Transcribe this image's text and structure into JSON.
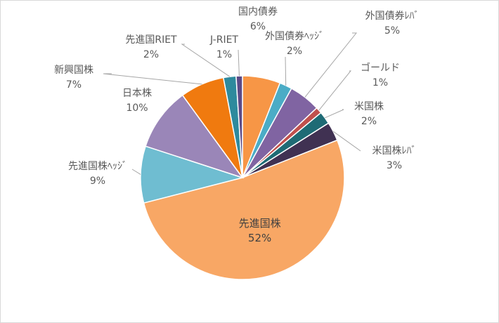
{
  "chart_data": {
    "type": "pie",
    "slices": [
      {
        "name": "国内債券",
        "value": 6,
        "label": "6%",
        "color": "#f79646"
      },
      {
        "name": "外国債券ﾍｯｼﾞ",
        "value": 2,
        "label": "2%",
        "color": "#4bacc6"
      },
      {
        "name": "外国債券ﾚﾊﾞ",
        "value": 5,
        "label": "5%",
        "color": "#8064a2"
      },
      {
        "name": "ゴールド",
        "value": 1,
        "label": "1%",
        "color": "#c0504d"
      },
      {
        "name": "米国株",
        "value": 2,
        "label": "2%",
        "color": "#1f6b75"
      },
      {
        "name": "米国株ﾚﾊﾞ",
        "value": 3,
        "label": "3%",
        "color": "#403152"
      },
      {
        "name": "先進国株",
        "value": 52,
        "label": "52%",
        "color": "#f8a765"
      },
      {
        "name": "先進国株ﾍｯｼﾞ",
        "value": 9,
        "label": "9%",
        "color": "#6fbdd1"
      },
      {
        "name": "日本株",
        "value": 10,
        "label": "10%",
        "color": "#9a86b8"
      },
      {
        "name": "新興国株",
        "value": 7,
        "label": "7%",
        "color": "#f07a0f"
      },
      {
        "name": "先進国RIET",
        "value": 2,
        "label": "2%",
        "color": "#2e8a9d"
      },
      {
        "name": "J-RIET",
        "value": 1,
        "label": "1%",
        "color": "#5b4a87"
      }
    ]
  }
}
